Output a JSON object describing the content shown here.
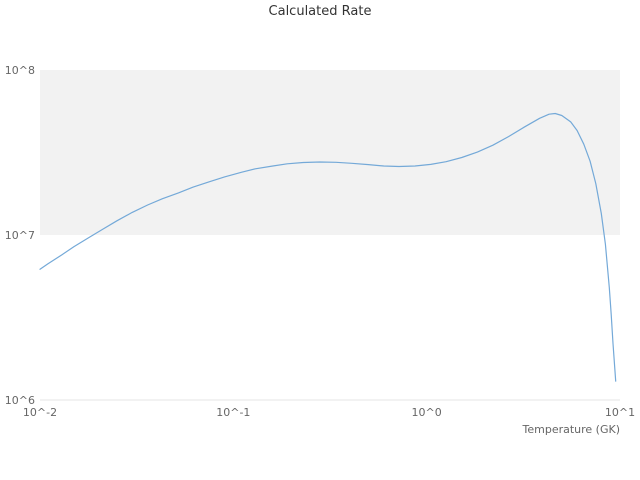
{
  "chart": {
    "title": "Calculated Rate",
    "x_axis_title": "Temperature (GK)",
    "colors": {
      "line": "#74a9d8",
      "band": "#f2f2f2",
      "title_text": "#333333",
      "tick_text": "#666666",
      "axis_line": "#e6e6e6"
    },
    "band": {
      "from": 10000000.0,
      "to": 100000000.0
    },
    "x_ticks": [
      {
        "value": 0.01,
        "label": "10^-2"
      },
      {
        "value": 0.1,
        "label": "10^-1"
      },
      {
        "value": 1.0,
        "label": "10^0"
      },
      {
        "value": 10.0,
        "label": "10^1"
      }
    ],
    "y_ticks": [
      {
        "value": 1000000.0,
        "label": "10^6"
      },
      {
        "value": 10000000.0,
        "label": "10^7"
      },
      {
        "value": 100000000.0,
        "label": "10^8"
      }
    ]
  },
  "chart_data": {
    "type": "line",
    "title": "Calculated Rate",
    "xlabel": "Temperature (GK)",
    "ylabel": "",
    "xscale": "log",
    "yscale": "log",
    "xlim": [
      0.01,
      10
    ],
    "ylim": [
      1000000.0,
      100000000.0
    ],
    "grid": "alternate-horizontal-band-1e7-to-1e8",
    "legend": false,
    "series_name": "Calculated Rate",
    "x": [
      0.01,
      0.011,
      0.013,
      0.015,
      0.018,
      0.021,
      0.025,
      0.03,
      0.036,
      0.043,
      0.052,
      0.062,
      0.075,
      0.09,
      0.11,
      0.13,
      0.16,
      0.19,
      0.23,
      0.28,
      0.34,
      0.41,
      0.5,
      0.6,
      0.72,
      0.87,
      1.05,
      1.26,
      1.52,
      1.83,
      2.2,
      2.65,
      3.19,
      3.84,
      4.3,
      4.62,
      5.0,
      5.56,
      6.0,
      6.5,
      7.0,
      7.5,
      8.0,
      8.4,
      8.8,
      9.0,
      9.2,
      9.4,
      9.5
    ],
    "y": [
      6200000.0,
      6700000.0,
      7600000.0,
      8500000.0,
      9700000.0,
      10800000.0,
      12200000.0,
      13700000.0,
      15200000.0,
      16600000.0,
      18000000.0,
      19500000.0,
      21000000.0,
      22500000.0,
      24000000.0,
      25200000.0,
      26200000.0,
      27000000.0,
      27500000.0,
      27700000.0,
      27600000.0,
      27200000.0,
      26700000.0,
      26200000.0,
      26000000.0,
      26200000.0,
      26800000.0,
      27800000.0,
      29500000.0,
      31800000.0,
      35000000.0,
      39500000.0,
      45000000.0,
      51000000.0,
      54000000.0,
      54500000.0,
      53000000.0,
      48500000.0,
      43000000.0,
      35500000.0,
      28000000.0,
      20500000.0,
      13500000.0,
      8800000.0,
      4800000.0,
      3300000.0,
      2200000.0,
      1550000.0,
      1300000.0
    ]
  }
}
